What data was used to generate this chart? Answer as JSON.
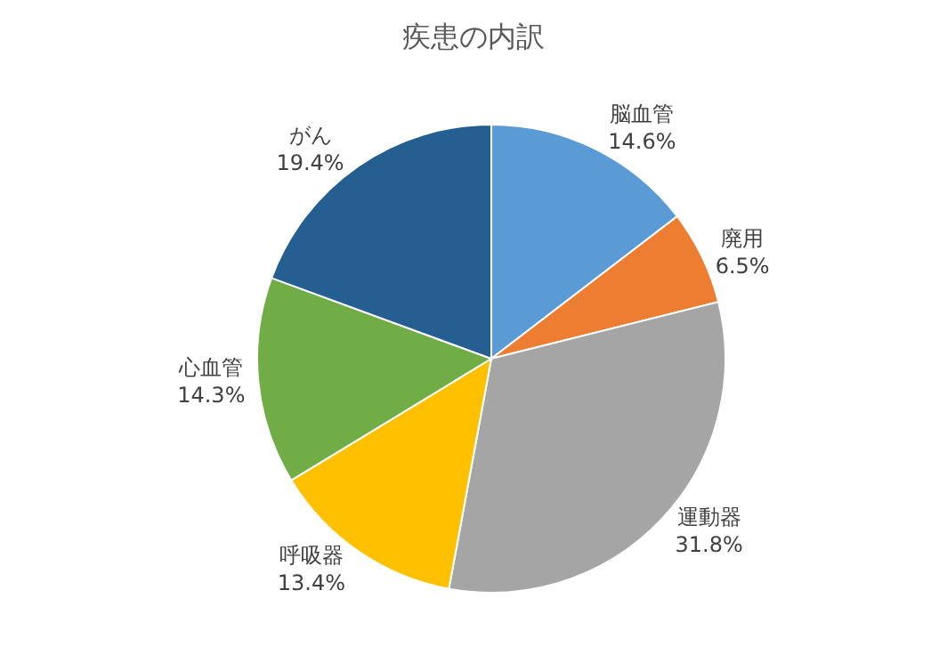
{
  "chart_data": {
    "type": "pie",
    "title": "疾患の内訳",
    "categories": [
      "脳血管",
      "廃用",
      "運動器",
      "呼吸器",
      "心血管",
      "がん"
    ],
    "values": [
      14.6,
      6.5,
      31.8,
      13.4,
      14.3,
      19.4
    ],
    "value_labels": [
      "14.6%",
      "6.5%",
      "31.8%",
      "13.4%",
      "14.3%",
      "19.4%"
    ],
    "colors": [
      "#5b9bd5",
      "#ed7d31",
      "#a5a5a5",
      "#ffc000",
      "#70ad47",
      "#255e91"
    ],
    "legend": false
  }
}
